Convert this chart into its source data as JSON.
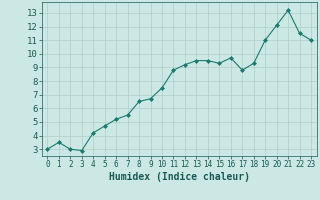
{
  "x": [
    0,
    1,
    2,
    3,
    4,
    5,
    6,
    7,
    8,
    9,
    10,
    11,
    12,
    13,
    14,
    15,
    16,
    17,
    18,
    19,
    20,
    21,
    22,
    23
  ],
  "y": [
    3.0,
    3.5,
    3.0,
    2.9,
    4.2,
    4.7,
    5.2,
    5.5,
    6.5,
    6.7,
    7.5,
    8.8,
    9.2,
    9.5,
    9.5,
    9.3,
    9.7,
    8.8,
    9.3,
    11.0,
    12.1,
    13.2,
    11.5,
    11.0
  ],
  "line_color": "#1a7a6e",
  "marker": "D",
  "marker_size": 2.0,
  "bg_color": "#cce8e4",
  "grid_color": "#b0ceca",
  "xlabel": "Humidex (Indice chaleur)",
  "xlabel_color": "#1a5a54",
  "xlabel_fontsize": 7,
  "tick_color": "#1a5a54",
  "ytick_fontsize": 6.5,
  "xtick_fontsize": 5.5,
  "ylim": [
    2.5,
    13.8
  ],
  "xlim": [
    -0.5,
    23.5
  ],
  "yticks": [
    3,
    4,
    5,
    6,
    7,
    8,
    9,
    10,
    11,
    12,
    13
  ],
  "xticks": [
    0,
    1,
    2,
    3,
    4,
    5,
    6,
    7,
    8,
    9,
    10,
    11,
    12,
    13,
    14,
    15,
    16,
    17,
    18,
    19,
    20,
    21,
    22,
    23
  ]
}
